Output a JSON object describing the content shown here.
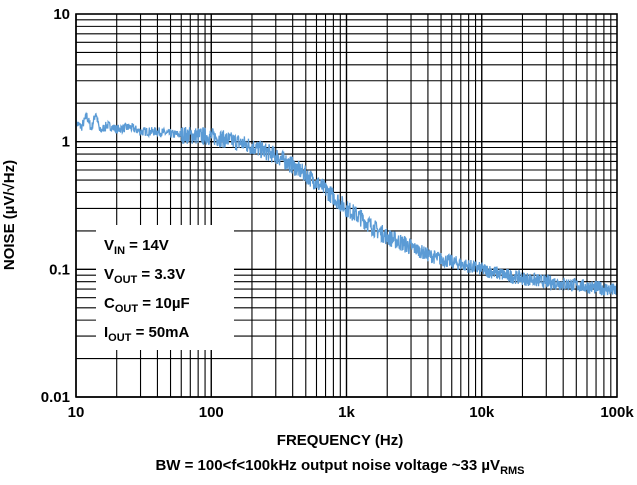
{
  "chart_data": {
    "type": "line",
    "xlabel": "FREQUENCY (Hz)",
    "ylabel": "NOISE (µV/√Hz)",
    "x_scale": "log",
    "y_scale": "log",
    "xlim": [
      10,
      100000
    ],
    "ylim": [
      0.01,
      10
    ],
    "grid": true,
    "x_ticks": [
      {
        "value": 10,
        "label": "10"
      },
      {
        "value": 100,
        "label": "100"
      },
      {
        "value": 1000,
        "label": "1k"
      },
      {
        "value": 10000,
        "label": "10k"
      },
      {
        "value": 100000,
        "label": "100k"
      }
    ],
    "y_ticks": [
      {
        "value": 0.01,
        "label": "0.01"
      },
      {
        "value": 0.1,
        "label": "0.1"
      },
      {
        "value": 1,
        "label": "1"
      },
      {
        "value": 10,
        "label": "10"
      }
    ],
    "annotations": [
      {
        "main": "V",
        "sub": "IN",
        "rest": " = 14V"
      },
      {
        "main": "V",
        "sub": "OUT",
        "rest": " = 3.3V"
      },
      {
        "main": "C",
        "sub": "OUT",
        "rest": " = 10µF"
      },
      {
        "main": "I",
        "sub": "OUT",
        "rest": " = 50mA"
      }
    ],
    "footnote": {
      "text": "BW = 100<f<100kHz output noise voltage ~33 µV",
      "sub": "RMS"
    },
    "line_color": "#5b9bd5",
    "series": [
      {
        "x": [
          10,
          11,
          12,
          13,
          14,
          15,
          17,
          20,
          25,
          30,
          40,
          50,
          70,
          100,
          150,
          200,
          300,
          400,
          500,
          600,
          700,
          800,
          1000,
          1300,
          1600,
          2000,
          3000,
          4000,
          5000,
          7000,
          10000,
          15000,
          20000,
          30000,
          50000,
          70000,
          100000
        ],
        "y": [
          1.4,
          1.3,
          1.6,
          1.25,
          1.7,
          1.2,
          1.35,
          1.25,
          1.3,
          1.2,
          1.2,
          1.15,
          1.12,
          1.1,
          1.0,
          0.92,
          0.78,
          0.65,
          0.55,
          0.48,
          0.42,
          0.37,
          0.3,
          0.25,
          0.21,
          0.18,
          0.15,
          0.13,
          0.12,
          0.11,
          0.1,
          0.09,
          0.085,
          0.08,
          0.075,
          0.072,
          0.068
        ]
      }
    ]
  }
}
